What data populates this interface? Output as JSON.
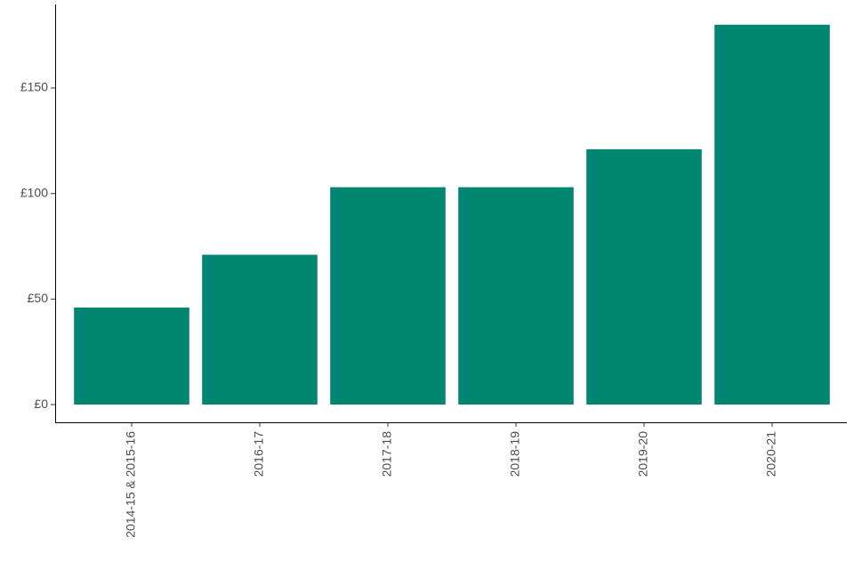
{
  "chart_data": {
    "type": "bar",
    "categories": [
      "2014-15 & 2015-16",
      "2016-17",
      "2017-18",
      "2018-19",
      "2019-20",
      "2020-21"
    ],
    "values": [
      46,
      71,
      103,
      103,
      121,
      180
    ],
    "color": "#008570",
    "ylim": [
      -8.4,
      189.6
    ],
    "yticks": [
      {
        "value": 0,
        "label": "£0"
      },
      {
        "value": 50,
        "label": "£50"
      },
      {
        "value": 100,
        "label": "£100"
      },
      {
        "value": 150,
        "label": "£150"
      }
    ],
    "grid": false
  }
}
